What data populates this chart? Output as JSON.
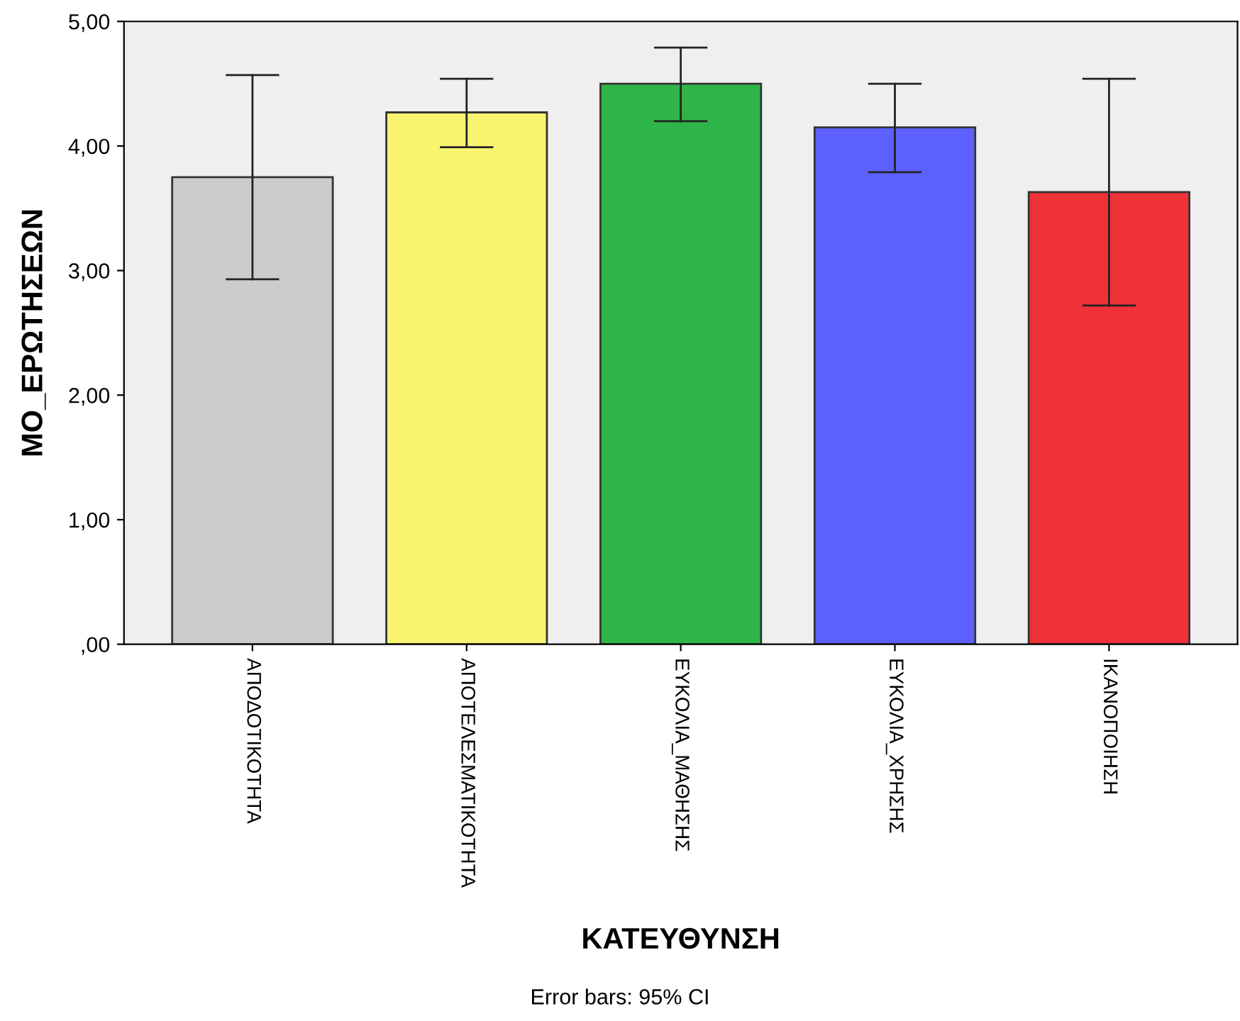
{
  "chart_data": {
    "type": "bar",
    "xlabel": "ΚΑΤΕΥΘΥΝΣΗ",
    "ylabel": "ΜΟ_ΕΡΩΤΗΣΕΩΝ",
    "categories": [
      "ΑΠΟΔΟΤΙΚΟΤΗΤΑ",
      "ΑΠΟΤΕΛΕΣΜΑΤΙΚΟΤΗΤΑ",
      "ΕΥΚΟΛΙΑ_ΜΑΘΗΣΗΣ",
      "ΕΥΚΟΛΙΑ_ΧΡΗΣΗΣ",
      "ΙΚΑΝΟΠΟΙΗΣΗ"
    ],
    "values": [
      3.75,
      4.27,
      4.5,
      4.15,
      3.63
    ],
    "colors": [
      "#cccccc",
      "#f9f570",
      "#2fb547",
      "#5b60ff",
      "#ef3238"
    ],
    "errors": [
      [
        2.93,
        4.57
      ],
      [
        3.99,
        4.54
      ],
      [
        4.2,
        4.79
      ],
      [
        3.79,
        4.5
      ],
      [
        2.72,
        4.54
      ]
    ],
    "ylim": [
      0,
      5
    ],
    "yticks": [
      {
        "value": 0,
        "label": ",00"
      },
      {
        "value": 1,
        "label": "1,00"
      },
      {
        "value": 2,
        "label": "2,00"
      },
      {
        "value": 3,
        "label": "3,00"
      },
      {
        "value": 4,
        "label": "4,00"
      },
      {
        "value": 5,
        "label": "5,00"
      }
    ],
    "grid": false,
    "annotations": [
      "Error bars: 95% CI"
    ]
  }
}
